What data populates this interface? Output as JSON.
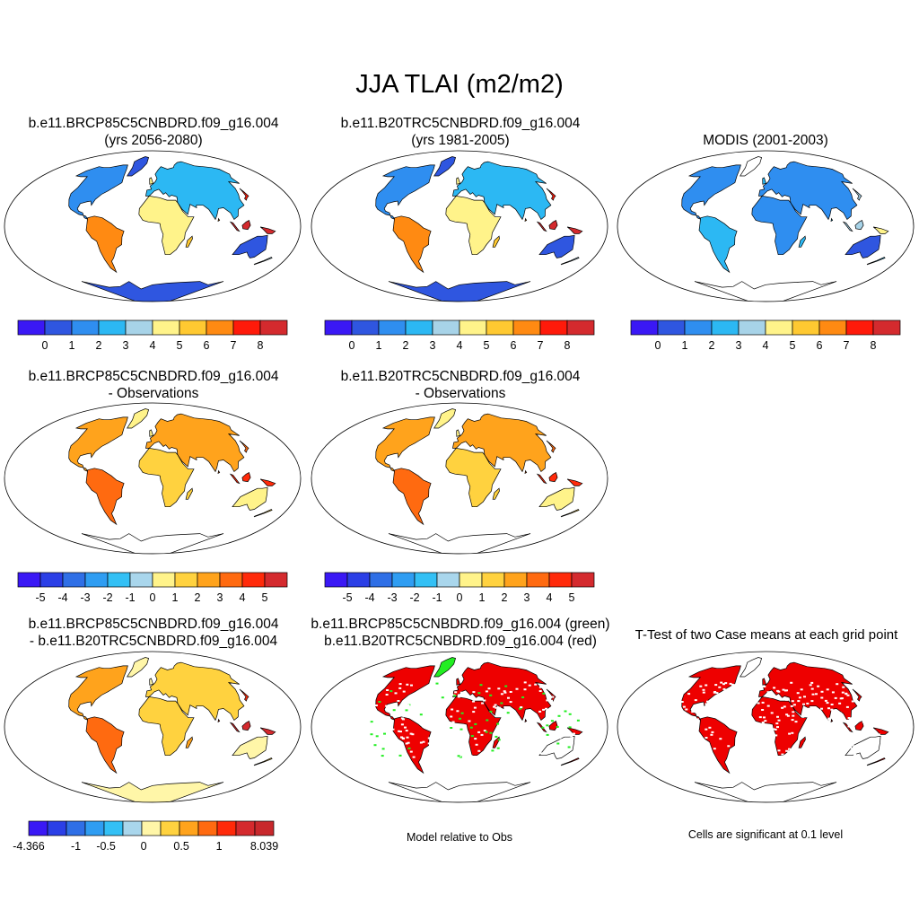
{
  "title": "JJA TLAI (m2/m2)",
  "colors": {
    "abs_scale": [
      "#3a18f5",
      "#2f56e0",
      "#2f8ef0",
      "#2cb8f3",
      "#a7d3e8",
      "#fff38a",
      "#ffc931",
      "#ff8a12",
      "#ff1a0a",
      "#d42a2e"
    ],
    "diff_scale": [
      "#3a18f5",
      "#2b3fe6",
      "#2f6fe6",
      "#2f9df2",
      "#33c0f5",
      "#a9d6ec",
      "#fff38a",
      "#ffd23f",
      "#ffa31c",
      "#ff6a10",
      "#ff2a0a",
      "#d42a2e"
    ],
    "diff2_scale": [
      "#3a18f5",
      "#2b3fe6",
      "#2f6fe6",
      "#2f9df2",
      "#33c0f5",
      "#a9d6ec",
      "#fff6a8",
      "#ffd23f",
      "#ffa31c",
      "#ff6a10",
      "#ff2a0a",
      "#d42a2e",
      "#c8282c"
    ],
    "sig_red": "#ee0000",
    "sig_green": "#22ee22",
    "ocean": "#ffffff",
    "coast": "#000000"
  },
  "panels": [
    {
      "id": "p1",
      "title_line1": "b.e11.BRCP85C5CNBDRD.f09_g16.004",
      "title_line2": "(yrs 2056-2080)",
      "fill": "abs-high"
    },
    {
      "id": "p2",
      "title_line1": "b.e11.B20TRC5CNBDRD.f09_g16.004",
      "title_line2": "(yrs 1981-2005)",
      "fill": "abs-high"
    },
    {
      "id": "p3",
      "title_line1": "MODIS (2001-2003)",
      "title_line2": "",
      "fill": "abs-low"
    },
    {
      "id": "p4",
      "title_line1": "b.e11.BRCP85C5CNBDRD.f09_g16.004",
      "title_line2": "- Observations",
      "fill": "diff"
    },
    {
      "id": "p5",
      "title_line1": "b.e11.B20TRC5CNBDRD.f09_g16.004",
      "title_line2": "- Observations",
      "fill": "diff"
    },
    {
      "id": "p7",
      "title_line1": "b.e11.BRCP85C5CNBDRD.f09_g16.004",
      "title_line2": "- b.e11.B20TRC5CNBDRD.f09_g16.004",
      "fill": "diff2"
    },
    {
      "id": "p8",
      "title_line1": "b.e11.BRCP85C5CNBDRD.f09_g16.004 (green)",
      "title_line2": "b.e11.B20TRC5CNBDRD.f09_g16.004 (red)",
      "fill": "sig2"
    },
    {
      "id": "p9",
      "title_line1": "T-Test of two Case means at each grid point",
      "title_line2": "",
      "fill": "sig"
    }
  ],
  "colorbars": {
    "abs": {
      "labels": [
        "0",
        "1",
        "2",
        "3",
        "4",
        "5",
        "6",
        "7",
        "8"
      ]
    },
    "diff": {
      "labels": [
        "-5",
        "-4",
        "-3",
        "-2",
        "-1",
        "0",
        "1",
        "2",
        "3",
        "4",
        "5"
      ]
    },
    "diff2": {
      "labels": [
        "-4.366",
        "-1",
        "-0.5",
        "0",
        "0.5",
        "1",
        "8.039"
      ]
    }
  },
  "notes": {
    "model_rel": "Model relative to Obs",
    "sig_level": "Cells are significant at 0.1 level"
  }
}
